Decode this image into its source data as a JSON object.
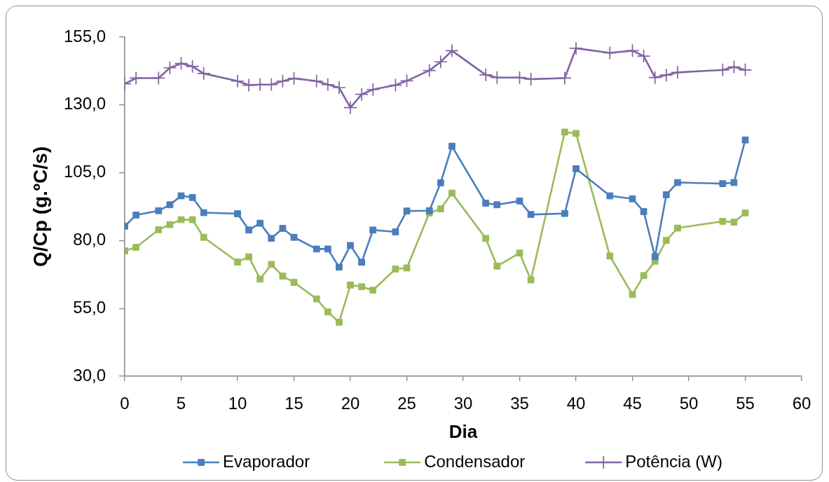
{
  "chart_data": {
    "type": "line",
    "xlabel": "Dia",
    "ylabel": "Q/Cp (g.ºC/s)",
    "xlim": [
      0,
      60
    ],
    "xticks": [
      0,
      5,
      10,
      15,
      20,
      25,
      30,
      35,
      40,
      45,
      50,
      55,
      60
    ],
    "ylim": [
      30,
      155
    ],
    "yticks": [
      {
        "value": 30,
        "label": "30,0"
      },
      {
        "value": 55,
        "label": "55,0"
      },
      {
        "value": 80,
        "label": "80,0"
      },
      {
        "value": 105,
        "label": "105,0"
      },
      {
        "value": 130,
        "label": "130,0"
      },
      {
        "value": 155,
        "label": "155,0"
      }
    ],
    "legend": "bottom",
    "x": [
      0,
      1,
      3,
      4,
      5,
      6,
      7,
      10,
      11,
      12,
      13,
      14,
      15,
      17,
      18,
      19,
      20,
      21,
      22,
      24,
      25,
      27,
      28,
      29,
      32,
      33,
      35,
      36,
      39,
      40,
      43,
      45,
      46,
      47,
      48,
      49,
      53,
      54,
      55
    ],
    "series": [
      {
        "name": "Evaporador",
        "color": "#4a7ebb",
        "marker": "square",
        "values": [
          85.3,
          89.4,
          91.0,
          93.2,
          96.5,
          95.9,
          90.3,
          89.9,
          83.9,
          86.4,
          80.8,
          84.5,
          81.2,
          76.9,
          76.9,
          70.2,
          78.2,
          72.0,
          83.9,
          83.2,
          90.9,
          91.0,
          101.3,
          114.8,
          93.8,
          93.2,
          94.6,
          89.6,
          90.0,
          106.5,
          96.5,
          95.4,
          90.7,
          74.1,
          96.9,
          101.4,
          101.0,
          101.4,
          117.1
        ]
      },
      {
        "name": "Condensador",
        "color": "#9bbb59",
        "marker": "square",
        "values": [
          76.2,
          77.5,
          84.0,
          85.9,
          87.7,
          87.7,
          81.2,
          72.1,
          74.0,
          65.8,
          71.2,
          66.9,
          64.6,
          58.5,
          53.7,
          49.9,
          63.6,
          63.0,
          61.7,
          69.5,
          69.9,
          90.2,
          91.7,
          97.5,
          80.8,
          70.6,
          75.4,
          65.5,
          120.0,
          119.5,
          74.3,
          60.1,
          67.1,
          72.4,
          80.1,
          84.6,
          87.1,
          86.8,
          90.2
        ]
      },
      {
        "name": "Potência (W)",
        "color": "#8064a2",
        "marker": "cross",
        "values": [
          137.8,
          139.9,
          139.9,
          143.7,
          145.3,
          144.2,
          141.6,
          138.8,
          137.3,
          137.5,
          137.5,
          138.8,
          139.8,
          138.8,
          137.5,
          136.4,
          129.0,
          133.9,
          135.7,
          137.3,
          138.9,
          142.7,
          145.9,
          150.0,
          141.1,
          140.1,
          140.1,
          139.5,
          139.9,
          150.9,
          149.2,
          150.0,
          148.0,
          140.1,
          141.0,
          142.0,
          142.9,
          144.0,
          142.9
        ]
      }
    ]
  }
}
